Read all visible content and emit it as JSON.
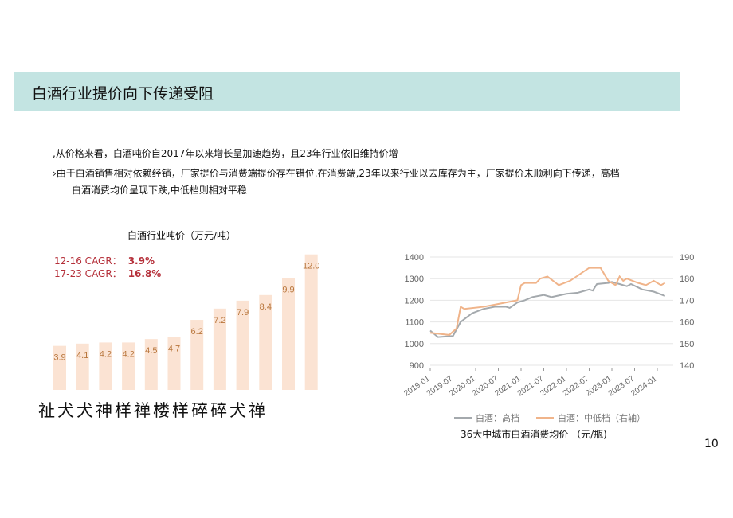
{
  "header": {
    "title": "白酒行业提价向下传递受阻"
  },
  "bullets": [
    ",从价格来看，白酒吨价自2017年以来增长呈加速趋势，且23年行业依旧维持价增",
    "›由于白酒销售相对依赖经销，厂家提价与消费端提价存在错位.在消费端,23年以来行业以去库存为主，厂家提价未顺利向下传递，高档",
    "白酒消费均价呈现下跌,中低档则相对平稳"
  ],
  "page_number": "10",
  "chart_data": [
    {
      "type": "bar",
      "title": "白酒行业吨价（万元/吨）",
      "categories_label_garbled": "祉犬犬神样禅楼样碎碎犬禅",
      "values": [
        3.9,
        4.1,
        4.2,
        4.2,
        4.5,
        4.7,
        6.2,
        7.2,
        7.9,
        8.4,
        9.9,
        12.0
      ],
      "value_labels": [
        "3.9",
        "4.1",
        "4.2",
        "4.2",
        "4.5",
        "4.7",
        "6.2",
        "7.2",
        "7.9",
        "8.4",
        "9.9",
        "12.0"
      ],
      "annotations": [
        {
          "label": "12-16 CAGR：",
          "value": "3.9%"
        },
        {
          "label": "17-23 CAGR：",
          "value": "16.8%"
        }
      ],
      "colors": {
        "bar": "#fbe3d3",
        "label": "#b8763c",
        "annotation": "#b5303a"
      }
    },
    {
      "type": "line",
      "title": "36大中城市白酒消费均价 （元/瓶)",
      "x_ticks": [
        "2019-01",
        "2019-07",
        "2020-01",
        "2020-07",
        "2021-01",
        "2021-07",
        "2022-01",
        "2022-07",
        "2023-01",
        "2023-07",
        "2024-01"
      ],
      "y_left": {
        "ticks": [
          900,
          1000,
          1100,
          1200,
          1300,
          1400
        ],
        "range": [
          900,
          1400
        ]
      },
      "y_right": {
        "ticks": [
          140,
          150,
          160,
          170,
          180,
          190
        ],
        "range": [
          140,
          190
        ]
      },
      "grid": true,
      "legend_position": "bottom",
      "series": [
        {
          "name": "白酒：高档",
          "axis": "left",
          "color": "#a4a9ad",
          "x": [
            2019.0,
            2019.17,
            2019.5,
            2019.67,
            2019.92,
            2020.17,
            2020.42,
            2020.67,
            2020.75,
            2020.92,
            2021.08,
            2021.25,
            2021.5,
            2021.67,
            2022.0,
            2022.25,
            2022.5,
            2022.58,
            2022.67,
            2022.92,
            2023.0,
            2023.17,
            2023.33,
            2023.42,
            2023.67,
            2023.92,
            2024.17
          ],
          "y": [
            1060,
            1030,
            1035,
            1100,
            1140,
            1160,
            1170,
            1170,
            1165,
            1190,
            1200,
            1215,
            1225,
            1215,
            1230,
            1235,
            1250,
            1245,
            1275,
            1280,
            1285,
            1275,
            1265,
            1275,
            1250,
            1240,
            1220
          ]
        },
        {
          "name": "白酒：中低档（右轴）",
          "axis": "right",
          "color": "#f0b48a",
          "x": [
            2019.0,
            2019.42,
            2019.58,
            2019.67,
            2019.75,
            2020.17,
            2020.42,
            2020.67,
            2020.92,
            2021.0,
            2021.08,
            2021.33,
            2021.42,
            2021.58,
            2021.83,
            2022.08,
            2022.5,
            2022.75,
            2022.92,
            2023.08,
            2023.17,
            2023.25,
            2023.33,
            2023.58,
            2023.75,
            2023.92,
            2024.08,
            2024.17
          ],
          "y": [
            155,
            154,
            157,
            167,
            166,
            167,
            168,
            169,
            170,
            177,
            178,
            178,
            180,
            181,
            177,
            179,
            185,
            185,
            179,
            177,
            181,
            179,
            180,
            178,
            177,
            179,
            177,
            178
          ]
        }
      ]
    }
  ]
}
